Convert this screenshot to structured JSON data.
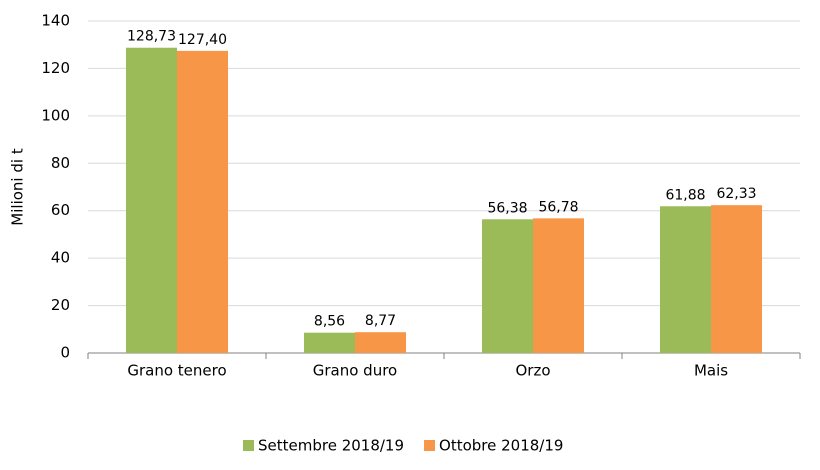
{
  "chart_data": {
    "type": "bar",
    "y_label": "Milioni di t",
    "categories": [
      "Grano tenero",
      "Grano duro",
      "Orzo",
      "Mais"
    ],
    "series": [
      {
        "name": "Settembre 2018/19",
        "color": "#9bbb59",
        "values": [
          128.73,
          8.56,
          56.38,
          61.88
        ],
        "value_labels": [
          "128,73",
          "8,56",
          "56,38",
          "61,88"
        ]
      },
      {
        "name": "Ottobre 2018/19",
        "color": "#f79646",
        "values": [
          127.4,
          8.77,
          56.78,
          62.33
        ],
        "value_labels": [
          "127,40",
          "8,77",
          "56,78",
          "62,33"
        ]
      }
    ],
    "ylim": [
      0,
      140
    ],
    "yticks": [
      0,
      20,
      40,
      60,
      80,
      100,
      120,
      140
    ],
    "grid": true,
    "legend": "bottom"
  }
}
